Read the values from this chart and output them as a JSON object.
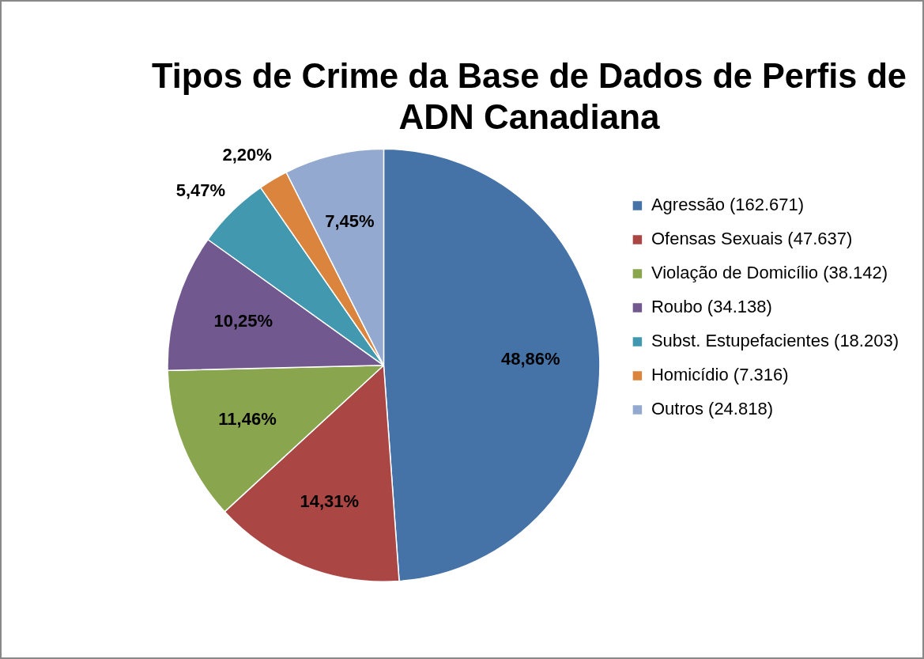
{
  "chart_data": {
    "type": "pie",
    "title": "Tipos de Crime da Base de Dados de Perfis de ADN Canadiana",
    "categories": [
      "Agressão (162.671)",
      "Ofensas Sexuais (47.637)",
      "Violação de Domicílio (38.142)",
      "Roubo (34.138)",
      "Subst. Estupefacientes (18.203)",
      "Homicídio (7.316)",
      "Outros (24.818)"
    ],
    "values": [
      48.86,
      14.31,
      11.46,
      10.25,
      5.47,
      2.2,
      7.45
    ],
    "colors": [
      "#4572a7",
      "#aa4643",
      "#89a54e",
      "#71588f",
      "#4198af",
      "#db843d",
      "#93a9cf"
    ],
    "value_labels": [
      "48,86%",
      "14,31%",
      "11,46%",
      "10,25%",
      "5,47%",
      "2,20%",
      "7,45%"
    ],
    "legend": "right"
  }
}
